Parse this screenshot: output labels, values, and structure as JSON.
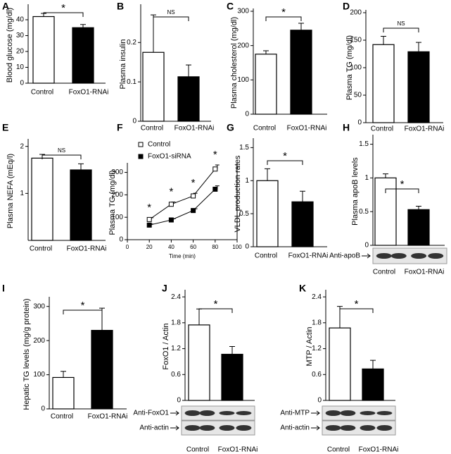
{
  "chart_data": [
    {
      "type": "bar",
      "panel": "A",
      "ylabel": "Blood glucose (mg/dl)",
      "categories": [
        "Control",
        "FoxO1-RNAi"
      ],
      "values": [
        42,
        35
      ],
      "errors": [
        2,
        2
      ],
      "colors": [
        "#ffffff",
        "#000000"
      ],
      "ylim": [
        0,
        48
      ],
      "yticks": [
        0,
        10,
        20,
        30,
        40
      ],
      "annotation": "*"
    },
    {
      "type": "bar",
      "panel": "B",
      "ylabel": "Plasma insulin",
      "categories": [
        "Control",
        "FoxO1-RNAi"
      ],
      "values": [
        0.175,
        0.113
      ],
      "errors": [
        0.095,
        0.03
      ],
      "colors": [
        "#ffffff",
        "#000000"
      ],
      "ylim": [
        0,
        0.29
      ],
      "yticks": [
        0,
        0.1,
        0.2
      ],
      "annotation": "NS"
    },
    {
      "type": "bar",
      "panel": "C",
      "ylabel": "Plasma cholesterol (mg/dl)",
      "categories": [
        "Control",
        "FoxO1-RNAi"
      ],
      "values": [
        175,
        245
      ],
      "errors": [
        10,
        20
      ],
      "colors": [
        "#ffffff",
        "#000000"
      ],
      "ylim": [
        0,
        300
      ],
      "yticks": [
        0,
        100,
        200,
        300
      ],
      "annotation": "*"
    },
    {
      "type": "bar",
      "panel": "D",
      "ylabel": "Plasma TG (mg/dl)",
      "categories": [
        "Control",
        "FoxO1-RNAi"
      ],
      "values": [
        142,
        129
      ],
      "errors": [
        15,
        17
      ],
      "colors": [
        "#ffffff",
        "#000000"
      ],
      "ylim": [
        0,
        200
      ],
      "yticks": [
        0,
        50,
        100,
        150,
        200
      ],
      "annotation": "NS"
    },
    {
      "type": "bar",
      "panel": "E",
      "ylabel": "Plasma NEFA (mEq/l)",
      "categories": [
        "Control",
        "FoxO1-RNAi"
      ],
      "values": [
        1.75,
        1.5
      ],
      "errors": [
        0.08,
        0.13
      ],
      "colors": [
        "#ffffff",
        "#000000"
      ],
      "ylim": [
        0,
        2.1
      ],
      "yticks": [
        1,
        2
      ],
      "annotation": "NS"
    },
    {
      "type": "line",
      "panel": "F",
      "ylabel": "Plasma TG (mg/dl)",
      "xlabel": "Time (min)",
      "x": [
        20,
        40,
        60,
        80
      ],
      "series": [
        {
          "name": "Control",
          "color": "#ffffff",
          "values": [
            90,
            158,
            195,
            315
          ],
          "errors": [
            8,
            10,
            12,
            18
          ]
        },
        {
          "name": "FoxO1-siRNA",
          "color": "#000000",
          "values": [
            65,
            88,
            130,
            225
          ],
          "errors": [
            5,
            5,
            8,
            15
          ]
        }
      ],
      "xlim": [
        0,
        100
      ],
      "xticks": [
        0,
        20,
        40,
        60,
        80,
        100
      ],
      "ylim": [
        0,
        330
      ],
      "yticks": [
        0,
        100,
        200,
        300
      ],
      "annotations": [
        "*",
        "*",
        "*",
        "*"
      ]
    },
    {
      "type": "bar",
      "panel": "G",
      "ylabel": "VLDL production rates",
      "categories": [
        "Control",
        "FoxO1-RNAi"
      ],
      "values": [
        1.0,
        0.68
      ],
      "errors": [
        0.18,
        0.16
      ],
      "colors": [
        "#ffffff",
        "#000000"
      ],
      "ylim": [
        0,
        1.6
      ],
      "yticks": [
        0,
        0.5,
        1,
        1.5
      ],
      "annotation": "*"
    },
    {
      "type": "bar",
      "panel": "H",
      "ylabel": "Plasma apoB levels",
      "categories": [
        "Control",
        "FoxO1-RNAi"
      ],
      "values": [
        1.0,
        0.53
      ],
      "errors": [
        0.06,
        0.05
      ],
      "colors": [
        "#ffffff",
        "#000000"
      ],
      "ylim": [
        0,
        1.6
      ],
      "yticks": [
        0,
        0.5,
        1,
        1.5
      ],
      "annotation": "*",
      "blot_labels": [
        "Anti-apoB"
      ]
    },
    {
      "type": "bar",
      "panel": "I",
      "ylabel": "Hepatic TG levels (mg/g protein)",
      "categories": [
        "Control",
        "FoxO1-RNAi"
      ],
      "values": [
        92,
        230
      ],
      "errors": [
        18,
        65
      ],
      "colors": [
        "#ffffff",
        "#000000"
      ],
      "ylim": [
        0,
        320
      ],
      "yticks": [
        0,
        100,
        200,
        300
      ],
      "annotation": "*"
    },
    {
      "type": "bar",
      "panel": "J",
      "ylabel": "FoxO1 / Actin",
      "categories": [
        "Control",
        "FoxO1-RNAi"
      ],
      "values": [
        1.75,
        1.07
      ],
      "errors": [
        0.37,
        0.18
      ],
      "colors": [
        "#ffffff",
        "#000000"
      ],
      "ylim": [
        0,
        2.5
      ],
      "yticks": [
        0,
        0.6,
        1.2,
        1.8,
        2.4
      ],
      "annotation": "*",
      "blot_labels": [
        "Anti-FoxO1",
        "Anti-actin"
      ]
    },
    {
      "type": "bar",
      "panel": "K",
      "ylabel": "MTP / Actin",
      "categories": [
        "Control",
        "FoxO1-RNAi"
      ],
      "values": [
        1.68,
        0.73
      ],
      "errors": [
        0.5,
        0.2
      ],
      "colors": [
        "#ffffff",
        "#000000"
      ],
      "ylim": [
        0,
        2.5
      ],
      "yticks": [
        0,
        0.6,
        1.2,
        1.8,
        2.4
      ],
      "annotation": "*",
      "blot_labels": [
        "Anti-MTP",
        "Anti-actin"
      ]
    }
  ]
}
